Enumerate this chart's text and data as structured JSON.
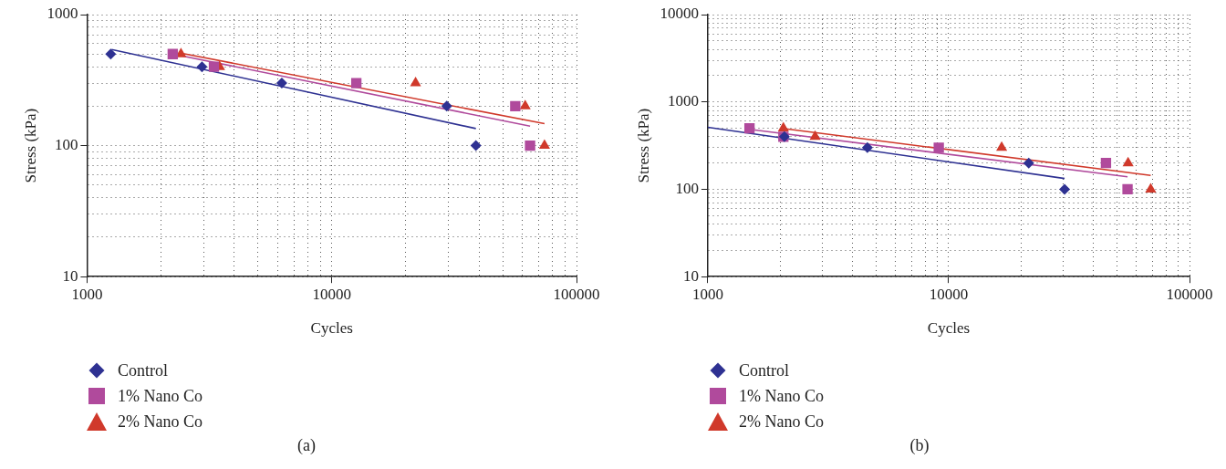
{
  "chart_data": [
    {
      "type": "scatter",
      "xlabel": "Cycles",
      "ylabel": "Stress (kPa)",
      "log": "xy",
      "grid": true,
      "legend": "bottom",
      "annotations": [
        "(a)"
      ],
      "xlim": [
        1000,
        100000
      ],
      "xticks": [
        1000,
        {
          "value": 2000,
          "label": null
        },
        {
          "value": 3000,
          "label": null
        },
        {
          "value": 4000,
          "label": null
        },
        {
          "value": 5000,
          "label": null
        },
        {
          "value": 6000,
          "label": null
        },
        {
          "value": 7000,
          "label": null
        },
        {
          "value": 8000,
          "label": null
        },
        {
          "value": 9000,
          "label": null
        },
        10000,
        {
          "value": 20000,
          "label": null
        },
        {
          "value": 30000,
          "label": null
        },
        {
          "value": 40000,
          "label": null
        },
        {
          "value": 50000,
          "label": null
        },
        {
          "value": 60000,
          "label": null
        },
        {
          "value": 70000,
          "label": null
        },
        {
          "value": 80000,
          "label": null
        },
        {
          "value": 90000,
          "label": null
        },
        100000
      ],
      "ylim": [
        10,
        1000
      ],
      "yticks": [
        10,
        {
          "value": 20,
          "label": null
        },
        {
          "value": 30,
          "label": null
        },
        {
          "value": 40,
          "label": null
        },
        {
          "value": 50,
          "label": null
        },
        {
          "value": 60,
          "label": null
        },
        {
          "value": 70,
          "label": null
        },
        {
          "value": 80,
          "label": null
        },
        {
          "value": 90,
          "label": null
        },
        100,
        {
          "value": 200,
          "label": null
        },
        {
          "value": 300,
          "label": null
        },
        {
          "value": 400,
          "label": null
        },
        {
          "value": 500,
          "label": null
        },
        {
          "value": 600,
          "label": null
        },
        {
          "value": 700,
          "label": null
        },
        {
          "value": 800,
          "label": null
        },
        {
          "value": 900,
          "label": null
        },
        1000
      ],
      "series": [
        {
          "name": "Control",
          "color": "#2e3192",
          "marker": "diamond",
          "x": [
            1250,
            2950,
            6250,
            29500,
            38800
          ],
          "values": [
            500,
            400,
            300,
            200,
            100
          ]
        },
        {
          "name": "1% Nano Co",
          "color": "#b04a9c",
          "marker": "square",
          "x": [
            2240,
            3300,
            12600,
            56200,
            64600
          ],
          "values": [
            500,
            400,
            300,
            200,
            100
          ]
        },
        {
          "name": "2% Nano Co",
          "color": "#d0392b",
          "marker": "triangle",
          "x": [
            2420,
            3480,
            22000,
            61700,
            74000
          ],
          "values": [
            500,
            400,
            300,
            200,
            100
          ]
        },
        {
          "type": "line",
          "color": "#2e3192",
          "marker": "none",
          "x": [
            1260,
            38800
          ],
          "values": [
            542,
            135
          ]
        },
        {
          "type": "line",
          "color": "#b04a9c",
          "marker": "none",
          "x": [
            2240,
            64600
          ],
          "values": [
            500,
            141
          ]
        },
        {
          "type": "line",
          "color": "#d0392b",
          "marker": "none",
          "x": [
            2420,
            74000
          ],
          "values": [
            508,
            147
          ]
        }
      ]
    },
    {
      "type": "scatter",
      "xlabel": "Cycles",
      "ylabel": "Stress (kPa)",
      "log": "xy",
      "grid": true,
      "legend": "bottom",
      "annotations": [
        "(b)"
      ],
      "xlim": [
        1000,
        100000
      ],
      "xticks": [
        1000,
        {
          "value": 2000,
          "label": null
        },
        {
          "value": 3000,
          "label": null
        },
        {
          "value": 4000,
          "label": null
        },
        {
          "value": 5000,
          "label": null
        },
        {
          "value": 6000,
          "label": null
        },
        {
          "value": 7000,
          "label": null
        },
        {
          "value": 8000,
          "label": null
        },
        {
          "value": 9000,
          "label": null
        },
        10000,
        {
          "value": 20000,
          "label": null
        },
        {
          "value": 30000,
          "label": null
        },
        {
          "value": 40000,
          "label": null
        },
        {
          "value": 50000,
          "label": null
        },
        {
          "value": 60000,
          "label": null
        },
        {
          "value": 70000,
          "label": null
        },
        {
          "value": 80000,
          "label": null
        },
        {
          "value": 90000,
          "label": null
        },
        100000
      ],
      "ylim": [
        10,
        10000
      ],
      "yticks": [
        10,
        {
          "value": 20,
          "label": null
        },
        {
          "value": 30,
          "label": null
        },
        {
          "value": 40,
          "label": null
        },
        {
          "value": 50,
          "label": null
        },
        {
          "value": 60,
          "label": null
        },
        {
          "value": 70,
          "label": null
        },
        {
          "value": 80,
          "label": null
        },
        {
          "value": 90,
          "label": null
        },
        100,
        {
          "value": 200,
          "label": null
        },
        {
          "value": 300,
          "label": null
        },
        {
          "value": 400,
          "label": null
        },
        {
          "value": 500,
          "label": null
        },
        {
          "value": 600,
          "label": null
        },
        {
          "value": 700,
          "label": null
        },
        {
          "value": 800,
          "label": null
        },
        {
          "value": 900,
          "label": null
        },
        1000,
        {
          "value": 2000,
          "label": null
        },
        {
          "value": 3000,
          "label": null
        },
        {
          "value": 4000,
          "label": null
        },
        {
          "value": 5000,
          "label": null
        },
        {
          "value": 6000,
          "label": null
        },
        {
          "value": 7000,
          "label": null
        },
        {
          "value": 8000,
          "label": null
        },
        {
          "value": 9000,
          "label": null
        },
        10000
      ],
      "series": [
        {
          "name": "Control",
          "color": "#2e3192",
          "marker": "diamond",
          "x": [
            2080,
            4600,
            21500,
            30300
          ],
          "values": [
            400,
            300,
            200,
            100
          ]
        },
        {
          "name": "1% Nano Co",
          "color": "#b04a9c",
          "marker": "square",
          "x": [
            1490,
            2060,
            9100,
            45000,
            55300
          ],
          "values": [
            500,
            400,
            300,
            200,
            100
          ]
        },
        {
          "name": "2% Nano Co",
          "color": "#d0392b",
          "marker": "triangle",
          "x": [
            2060,
            2790,
            16600,
            55600,
            69000
          ],
          "values": [
            500,
            400,
            300,
            200,
            100
          ]
        },
        {
          "type": "line",
          "color": "#2e3192",
          "marker": "none",
          "x": [
            1000,
            30300
          ],
          "values": [
            512,
            133
          ]
        },
        {
          "type": "line",
          "color": "#b04a9c",
          "marker": "none",
          "x": [
            1490,
            55300
          ],
          "values": [
            486,
            139
          ]
        },
        {
          "type": "line",
          "color": "#d0392b",
          "marker": "none",
          "x": [
            2080,
            69000
          ],
          "values": [
            495,
            144
          ]
        }
      ]
    }
  ]
}
